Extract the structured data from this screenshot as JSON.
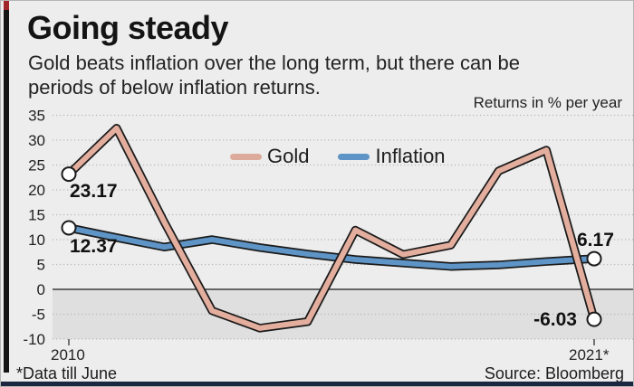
{
  "header": {
    "title": "Going steady",
    "subtitle_line1": "Gold beats inflation over the long term, but there can be",
    "subtitle_line2": "periods of below inflation returns.",
    "unit_note": "Returns in % per year"
  },
  "legend": [
    {
      "label": "Gold",
      "color": "#dcab9b"
    },
    {
      "label": "Inflation",
      "color": "#5e94c6"
    }
  ],
  "footer": {
    "note": "*Data till June",
    "source": "Source: Bloomberg"
  },
  "colors": {
    "background": "#ededed",
    "below_zero_band": "#dfdfdf",
    "line_outline": "#1b1b1b",
    "gold_line": "#e3ae9d",
    "inflation_line": "#5e94c6",
    "zero_axis": "#3c3c3c",
    "gridline": "#b8b8b8",
    "bottom_bar": "#1b2740",
    "accent_bar": "#151515"
  },
  "chart_data": {
    "type": "line",
    "x": [
      2010,
      2011,
      2012,
      2013,
      2014,
      2015,
      2016,
      2017,
      2018,
      2019,
      2020,
      2021
    ],
    "x_axis_labels": [
      "2010",
      "2021*"
    ],
    "series": [
      {
        "name": "Gold",
        "color": "#e3ae9d",
        "values": [
          23.17,
          32.4,
          13.5,
          -4.3,
          -7.8,
          -6.5,
          11.9,
          7.0,
          8.9,
          23.8,
          28.0,
          -6.03
        ]
      },
      {
        "name": "Inflation",
        "color": "#5e94c6",
        "values": [
          12.37,
          10.4,
          8.5,
          10.0,
          8.4,
          7.1,
          6.0,
          5.3,
          4.6,
          4.9,
          5.6,
          6.17
        ]
      }
    ],
    "yticks": [
      35,
      30,
      25,
      20,
      15,
      10,
      5,
      0,
      -5,
      -10
    ],
    "ylim": [
      -10,
      35
    ],
    "grid": "dotted horizontal gridlines, solid zero axis, shaded band below zero",
    "legend_position": "top center of plot",
    "endpoint_markers": true,
    "annotations": [
      {
        "text": "23.17",
        "series": "Gold",
        "position": "start"
      },
      {
        "text": "12.37",
        "series": "Inflation",
        "position": "start"
      },
      {
        "text": "6.17",
        "series": "Inflation",
        "position": "end"
      },
      {
        "text": "-6.03",
        "series": "Gold",
        "position": "end"
      }
    ]
  }
}
